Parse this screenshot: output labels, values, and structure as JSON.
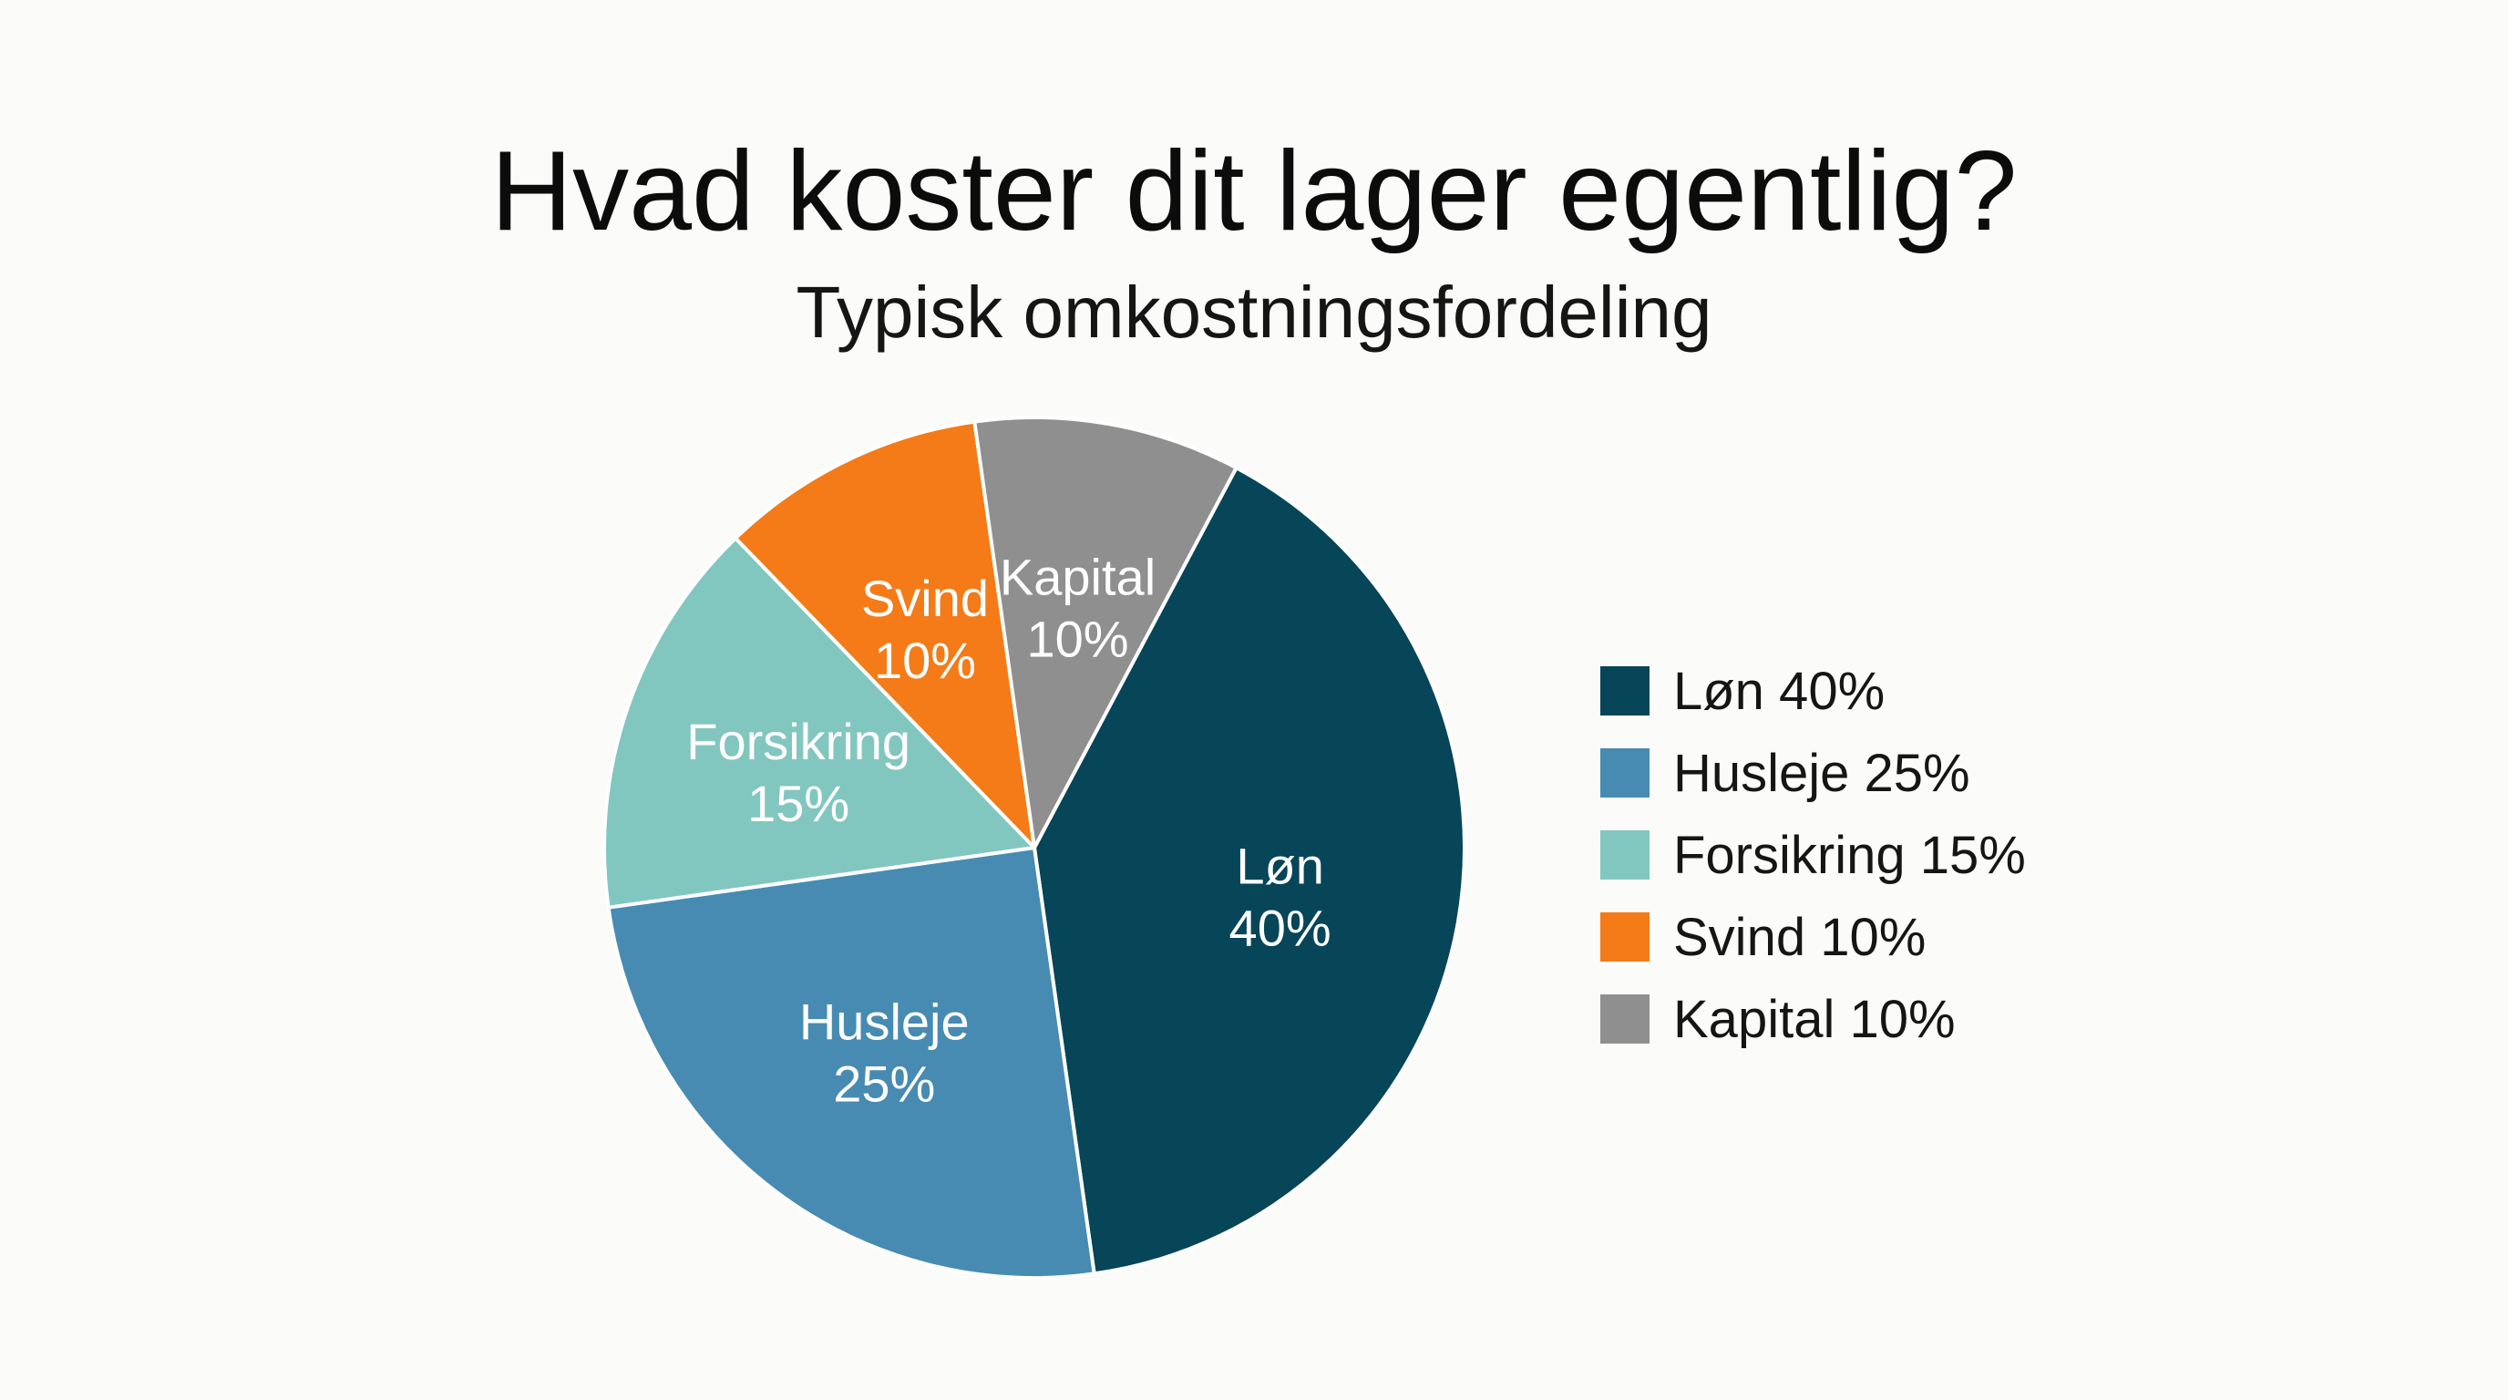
{
  "chart_data": {
    "type": "pie",
    "title": "Hvad koster dit lager egentlig?",
    "subtitle": "Typisk omkostningsfordeling",
    "unit": "%",
    "slices": [
      {
        "label": "Løn",
        "value": 40,
        "display": "40%",
        "legend": "Løn 40%",
        "color": "#074558"
      },
      {
        "label": "Husleje",
        "value": 25,
        "display": "25%",
        "legend": "Husleje 25%",
        "color": "#478bb3"
      },
      {
        "label": "Forsikring",
        "value": 15,
        "display": "15%",
        "legend": "Forsikring 15%",
        "color": "#82c7bf"
      },
      {
        "label": "Svind",
        "value": 10,
        "display": "10%",
        "legend": "Svind 10%",
        "color": "#f47b18"
      },
      {
        "label": "Kapital",
        "value": 10,
        "display": "10%",
        "legend": "Kapital 10%",
        "color": "#8f8f8f"
      }
    ],
    "legend_position": "right"
  }
}
